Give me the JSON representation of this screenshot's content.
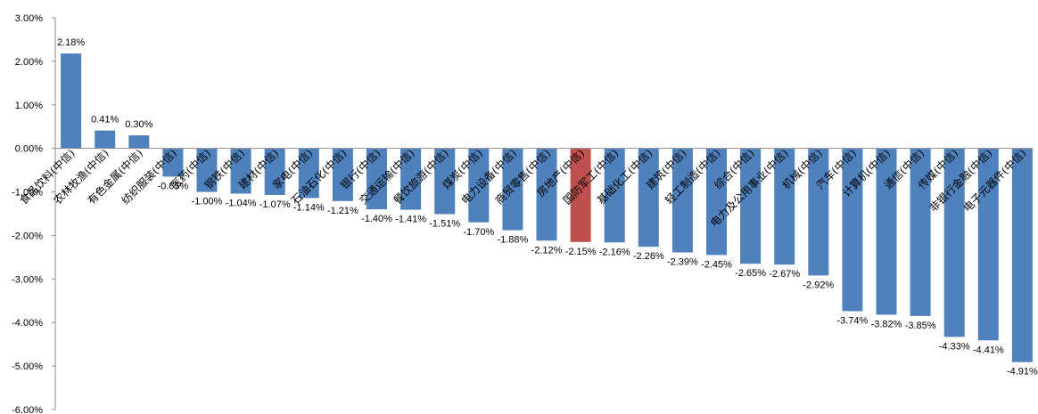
{
  "chart_data": {
    "type": "bar",
    "categories": [
      "食品饮料(中信)",
      "农林牧渔(中信)",
      "有色金属(中信)",
      "纺织服装(中信)",
      "医药(中信)",
      "钢铁(中信)",
      "建材(中信)",
      "家电(中信)",
      "石油石化(中信)",
      "银行(中信)",
      "交通运输(中信)",
      "餐饮旅游(中信)",
      "煤炭(中信)",
      "电力设备(中信)",
      "商贸零售(中信)",
      "房地产(中信)",
      "国防军工(中信)",
      "基础化工(中信)",
      "建筑(中信)",
      "轻工制造(中信)",
      "综合(中信)",
      "电力及公用事业(中信)",
      "机械(中信)",
      "汽车(中信)",
      "计算机(中信)",
      "通信(中信)",
      "传媒(中信)",
      "非银行金融(中信)",
      "电子元器件(中信)"
    ],
    "values": [
      2.18,
      0.41,
      0.3,
      -0.65,
      -1.0,
      -1.04,
      -1.07,
      -1.14,
      -1.21,
      -1.4,
      -1.41,
      -1.51,
      -1.7,
      -1.88,
      -2.12,
      -2.15,
      -2.16,
      -2.26,
      -2.39,
      -2.45,
      -2.65,
      -2.67,
      -2.92,
      -3.74,
      -3.82,
      -3.85,
      -4.33,
      -4.41,
      -4.91
    ],
    "data_labels": [
      "2.18%",
      "0.41%",
      "0.30%",
      "-0.65%",
      "-1.00%",
      "-1.04%",
      "-1.07%",
      "-1.14%",
      "-1.21%",
      "-1.40%",
      "-1.41%",
      "-1.51%",
      "-1.70%",
      "-1.88%",
      "-2.12%",
      "-2.15%",
      "-2.16%",
      "-2.26%",
      "-2.39%",
      "-2.45%",
      "-2.65%",
      "-2.67%",
      "-2.92%",
      "-3.74%",
      "-3.82%",
      "-3.85%",
      "-4.33%",
      "-4.41%",
      "-4.91%"
    ],
    "yticks": [
      3,
      2,
      1,
      0,
      -1,
      -2,
      -3,
      -4,
      -5,
      -6
    ],
    "ytick_labels": [
      "3.00%",
      "2.00%",
      "1.00%",
      "0.00%",
      "-1.00%",
      "-2.00%",
      "-3.00%",
      "-4.00%",
      "-5.00%",
      "-6.00%"
    ],
    "ylim": [
      -6,
      3
    ],
    "title": "",
    "xlabel": "",
    "ylabel": "",
    "grid": false,
    "highlight_category": "房地产(中信)",
    "colors": {
      "bar": "#4f81bd",
      "highlight": "#c0504d",
      "axis": "#8c8c8c"
    }
  }
}
